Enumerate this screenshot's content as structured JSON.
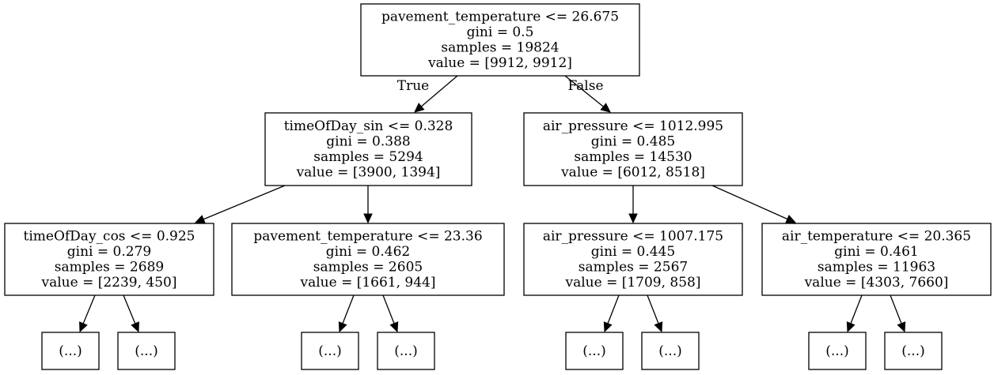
{
  "tree": {
    "nodes": [
      {
        "id": "root",
        "lines": [
          "pavement_temperature <= 26.675",
          "gini = 0.5",
          "samples = 19824",
          "value = [9912, 9912]"
        ]
      },
      {
        "id": "n1",
        "lines": [
          "timeOfDay_sin <= 0.328",
          "gini = 0.388",
          "samples = 5294",
          "value = [3900, 1394]"
        ]
      },
      {
        "id": "n2",
        "lines": [
          "air_pressure <= 1012.995",
          "gini = 0.485",
          "samples = 14530",
          "value = [6012, 8518]"
        ]
      },
      {
        "id": "n3",
        "lines": [
          "timeOfDay_cos <= 0.925",
          "gini = 0.279",
          "samples = 2689",
          "value = [2239, 450]"
        ]
      },
      {
        "id": "n4",
        "lines": [
          "pavement_temperature <= 23.36",
          "gini = 0.462",
          "samples = 2605",
          "value = [1661, 944]"
        ]
      },
      {
        "id": "n5",
        "lines": [
          "air_pressure <= 1007.175",
          "gini = 0.445",
          "samples = 2567",
          "value = [1709, 858]"
        ]
      },
      {
        "id": "n6",
        "lines": [
          "air_temperature <= 20.365",
          "gini = 0.461",
          "samples = 11963",
          "value = [4303, 7660]"
        ]
      },
      {
        "id": "l1",
        "lines": [
          "(...)"
        ]
      },
      {
        "id": "l2",
        "lines": [
          "(...)"
        ]
      },
      {
        "id": "l3",
        "lines": [
          "(...)"
        ]
      },
      {
        "id": "l4",
        "lines": [
          "(...)"
        ]
      },
      {
        "id": "l5",
        "lines": [
          "(...)"
        ]
      },
      {
        "id": "l6",
        "lines": [
          "(...)"
        ]
      },
      {
        "id": "l7",
        "lines": [
          "(...)"
        ]
      },
      {
        "id": "l8",
        "lines": [
          "(...)"
        ]
      }
    ],
    "edges": [
      {
        "from": "root",
        "to": "n1",
        "label": "True"
      },
      {
        "from": "root",
        "to": "n2",
        "label": "False"
      },
      {
        "from": "n1",
        "to": "n3"
      },
      {
        "from": "n1",
        "to": "n4"
      },
      {
        "from": "n2",
        "to": "n5"
      },
      {
        "from": "n2",
        "to": "n6"
      },
      {
        "from": "n3",
        "to": "l1"
      },
      {
        "from": "n3",
        "to": "l2"
      },
      {
        "from": "n4",
        "to": "l3"
      },
      {
        "from": "n4",
        "to": "l4"
      },
      {
        "from": "n5",
        "to": "l5"
      },
      {
        "from": "n5",
        "to": "l6"
      },
      {
        "from": "n6",
        "to": "l7"
      },
      {
        "from": "n6",
        "to": "l8"
      }
    ]
  }
}
